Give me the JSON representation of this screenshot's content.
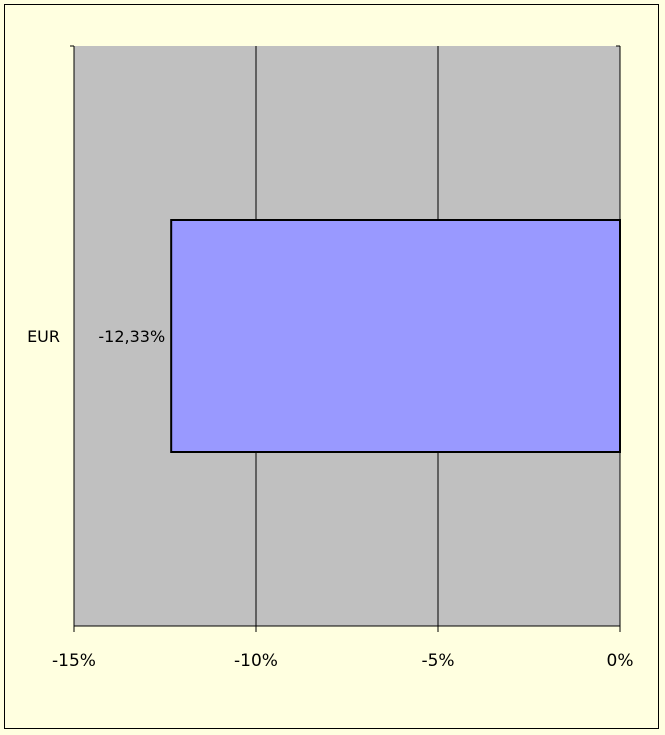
{
  "colors": {
    "background": "#ffffe0",
    "plot_area": "#c0c0c0",
    "bar_fill": "#9999ff",
    "bar_stroke": "#000000",
    "gridline": "#000000"
  },
  "chart_data": {
    "type": "bar",
    "orientation": "horizontal",
    "categories": [
      "EUR"
    ],
    "values": [
      -12.33
    ],
    "data_labels": [
      "-12,33%"
    ],
    "title": "",
    "xlabel": "",
    "ylabel": "",
    "xlim": [
      -15,
      0
    ],
    "xticks": [
      -15,
      -10,
      -5,
      0
    ],
    "xtick_labels": [
      "-15%",
      "-10%",
      "-5%",
      "0%"
    ],
    "grid": true,
    "legend": "none"
  }
}
